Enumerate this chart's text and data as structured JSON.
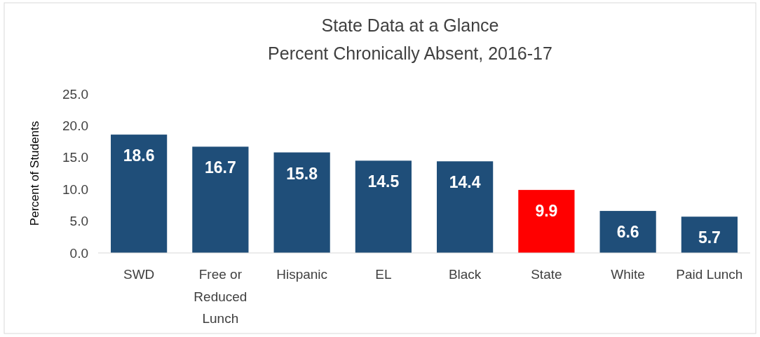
{
  "chart_data": {
    "type": "bar",
    "title": "State Data at a Glance",
    "subtitle": "Percent Chronically Absent, 2016-17",
    "ylabel": "Percent of Students",
    "categories": [
      "SWD",
      "Free or Reduced Lunch",
      "Hispanic",
      "EL",
      "Black",
      "State",
      "White",
      "Paid Lunch"
    ],
    "values": [
      18.6,
      16.7,
      15.8,
      14.5,
      14.4,
      9.9,
      6.6,
      5.7
    ],
    "colors": [
      "#1f4e79",
      "#1f4e79",
      "#1f4e79",
      "#1f4e79",
      "#1f4e79",
      "#ff0000",
      "#1f4e79",
      "#1f4e79"
    ],
    "ylim": [
      0,
      25
    ],
    "yticks": [
      {
        "value": 0,
        "label": "0.0"
      },
      {
        "value": 5,
        "label": "5.0"
      },
      {
        "value": 10,
        "label": "10.0"
      },
      {
        "value": 15,
        "label": "15.0"
      },
      {
        "value": 20,
        "label": "20.0"
      },
      {
        "value": 25,
        "label": "25.0"
      }
    ],
    "data_labels": true,
    "grid": false
  }
}
